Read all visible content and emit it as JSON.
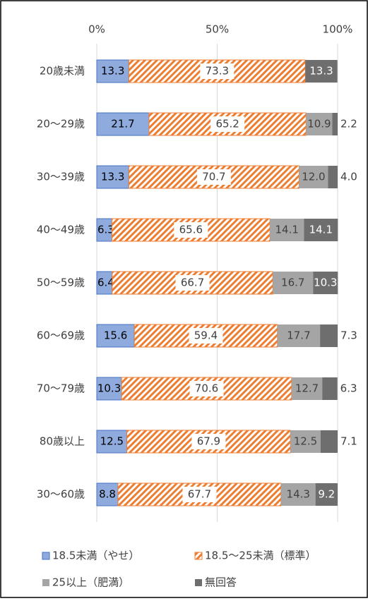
{
  "chart_data": {
    "type": "stacked-bar-horizontal",
    "categories": [
      "20歳未満",
      "20～29歳",
      "30～39歳",
      "40～49歳",
      "50～59歳",
      "60～69歳",
      "70～79歳",
      "80歳以上",
      "30～60歳"
    ],
    "series": [
      {
        "name": "18.5未満（やせ）",
        "color": "#8faadc",
        "values": [
          13.3,
          21.7,
          13.3,
          6.3,
          6.4,
          15.6,
          10.3,
          12.5,
          8.8
        ]
      },
      {
        "name": "18.5～25未満（標準）",
        "color": "#ed7d31",
        "values": [
          73.3,
          65.2,
          70.7,
          65.6,
          66.7,
          59.4,
          70.6,
          67.9,
          67.7
        ]
      },
      {
        "name": "25以上（肥満）",
        "color": "#a5a5a5",
        "values": [
          0,
          10.9,
          12,
          14.1,
          16.7,
          17.7,
          12.7,
          12.5,
          14.3
        ],
        "value_labels": [
          null,
          "10.9",
          "12.0",
          "14.1",
          "16.7",
          "17.7",
          "12.7",
          "12.5",
          "14.3"
        ]
      },
      {
        "name": "無回答",
        "color": "#6e6e6e",
        "values": [
          13.3,
          2.2,
          4,
          14.1,
          10.3,
          7.3,
          6.3,
          7.1,
          9.2
        ],
        "value_labels": [
          "13.3",
          "2.2",
          "4.0",
          "14.1",
          "10.3",
          "7.3",
          "6.3",
          "7.1",
          "9.2"
        ]
      }
    ],
    "xlim": [
      0,
      100
    ],
    "xticks": [
      {
        "value": 0,
        "label": "0%"
      },
      {
        "value": 50,
        "label": "50%"
      },
      {
        "value": 100,
        "label": "100%"
      }
    ],
    "grid": true
  }
}
